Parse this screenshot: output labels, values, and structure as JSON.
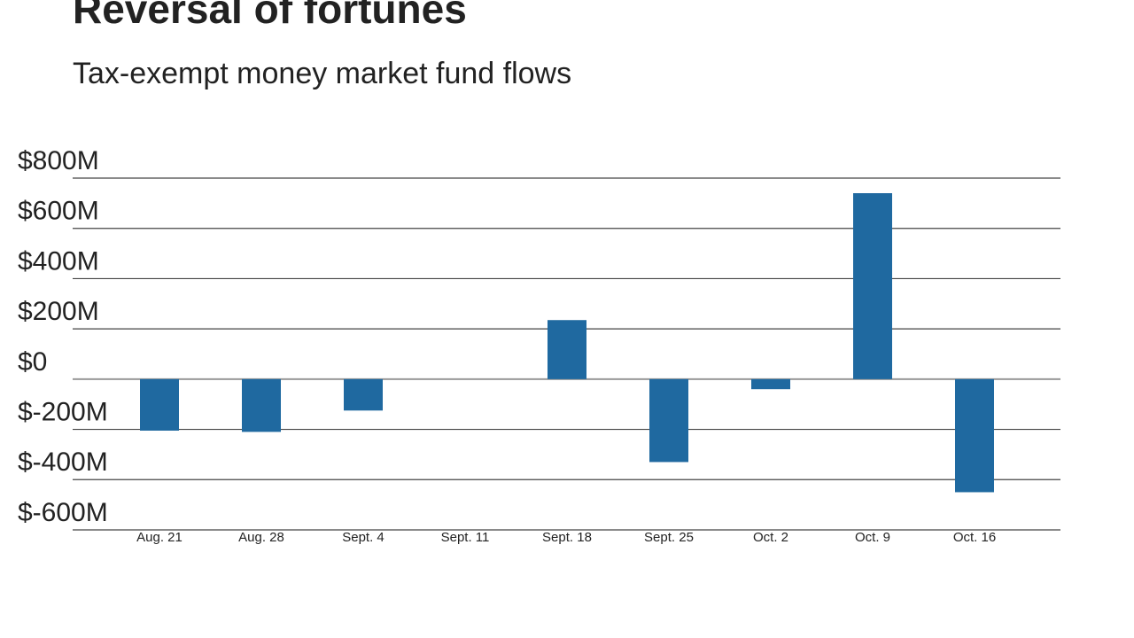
{
  "chart_data": {
    "type": "bar",
    "title": "Reversal of fortunes",
    "subtitle": "Tax-exempt money market fund flows",
    "categories": [
      "Aug. 21",
      "Aug. 28",
      "Sept. 4",
      "Sept. 11",
      "Sept. 18",
      "Sept. 25",
      "Oct. 2",
      "Oct. 9",
      "Oct. 16"
    ],
    "values": [
      -205,
      -210,
      -125,
      0,
      235,
      -330,
      -40,
      740,
      -450
    ],
    "color": "#1f69a0",
    "ylim": [
      -600,
      800
    ],
    "yticks": [
      {
        "value": -600,
        "label": "$-600M"
      },
      {
        "value": -400,
        "label": "$-400M"
      },
      {
        "value": -200,
        "label": "$-200M"
      },
      {
        "value": 0,
        "label": "$0"
      },
      {
        "value": 200,
        "label": "$200M"
      },
      {
        "value": 400,
        "label": "$400M"
      },
      {
        "value": 600,
        "label": "$600M"
      },
      {
        "value": 800,
        "label": "$800M"
      }
    ],
    "grid": true
  }
}
